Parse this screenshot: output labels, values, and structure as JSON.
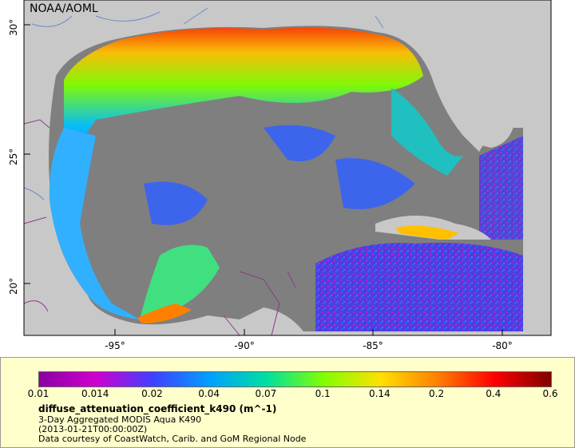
{
  "map": {
    "credit": "NOAA/AOML",
    "lon_ticks": [
      "-95°",
      "-90°",
      "-85°",
      "-80°"
    ],
    "lat_ticks": [
      "30°",
      "25°",
      "20°"
    ],
    "colors": {
      "land": "#c8c8c8",
      "nodata": "#7f7f7f",
      "border": "#8b3a8b",
      "river": "#6b8cc7"
    }
  },
  "legend": {
    "colorbar_labels": [
      "0.01",
      "0.014",
      "0.02",
      "0.04",
      "0.07",
      "0.1",
      "0.14",
      "0.2",
      "0.4",
      "0.6"
    ],
    "colorbar_colors": [
      "#8a00a0",
      "#d000d0",
      "#4040ff",
      "#00a0ff",
      "#00e0a0",
      "#80ff00",
      "#ffe000",
      "#ff8000",
      "#ff0000",
      "#800000"
    ],
    "variable": "diffuse_attenuation_coefficient_k490 (m^-1)",
    "description": "3-Day Aggregated MODIS Aqua K490",
    "time": "(2013-01-21T00:00:00Z)",
    "courtesy": "Data courtesy of CoastWatch, Carib. and GoM Regional Node"
  }
}
